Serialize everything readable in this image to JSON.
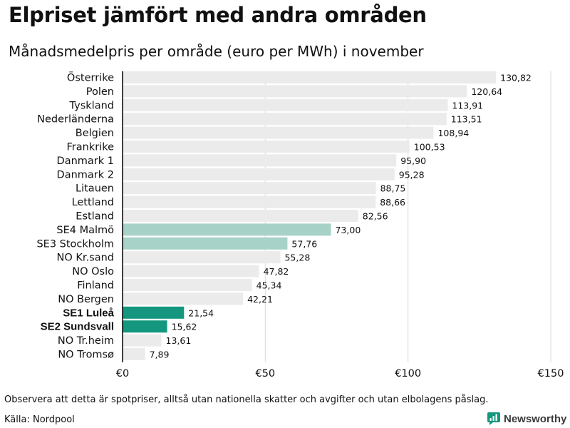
{
  "chart_data": {
    "type": "bar",
    "orientation": "horizontal",
    "title": "Elpriset jämfört med andra områden",
    "subtitle": "Månadsmedelpris per område (euro per MWh) i november",
    "xlabel": "",
    "ylabel": "",
    "xlim": [
      0,
      150
    ],
    "xticks": [
      0,
      50,
      100,
      150
    ],
    "xtick_labels": [
      "€0",
      "€50",
      "€100",
      "€150"
    ],
    "grid": true,
    "categories": [
      "Österrike",
      "Polen",
      "Tyskland",
      "Nederländerna",
      "Belgien",
      "Frankrike",
      "Danmark  1",
      "Danmark  2",
      "Litauen",
      "Lettland",
      "Estland",
      "SE4  Malmö",
      "SE3  Stockholm",
      "NO Kr.sand",
      "NO Oslo",
      "Finland",
      "NO Bergen",
      "SE1 Luleå",
      "SE2 Sundsvall",
      "NO Tr.heim",
      "NO Tromsø"
    ],
    "values": [
      130.82,
      120.64,
      113.91,
      113.51,
      108.94,
      100.53,
      95.9,
      95.28,
      88.75,
      88.66,
      82.56,
      73.0,
      57.76,
      55.28,
      47.82,
      45.34,
      42.21,
      21.54,
      15.62,
      13.61,
      7.89
    ],
    "value_labels": [
      "130,82",
      "120,64",
      "113,91",
      "113,51",
      "108,94",
      "100,53",
      "95,90",
      "95,28",
      "88,75",
      "88,66",
      "82,56",
      "73,00",
      "57,76",
      "55,28",
      "47,82",
      "45,34",
      "42,21",
      "21,54",
      "15,62",
      "13,61",
      "7,89"
    ],
    "highlight": [
      "default",
      "default",
      "default",
      "default",
      "default",
      "default",
      "default",
      "default",
      "default",
      "default",
      "default",
      "light",
      "light",
      "default",
      "default",
      "default",
      "default",
      "dark",
      "dark",
      "default",
      "default"
    ],
    "bold_labels": [
      false,
      false,
      false,
      false,
      false,
      false,
      false,
      false,
      false,
      false,
      false,
      false,
      false,
      false,
      false,
      false,
      false,
      true,
      true,
      false,
      false
    ]
  },
  "colors": {
    "bar_default": "#ebebeb",
    "bar_light": "#a6d2c7",
    "bar_dark": "#14977e",
    "axis": "#000000",
    "grid": "#d9d9d9",
    "brand": "#14977e"
  },
  "footer": {
    "note": "Observera att detta är spotpriser, alltså utan nationella skatter och avgifter och utan elbolagens påslag.",
    "source": "Källa: Nordpool",
    "brand": "Newsworthy",
    "brand_icon": "newsworthy-logo-icon"
  }
}
